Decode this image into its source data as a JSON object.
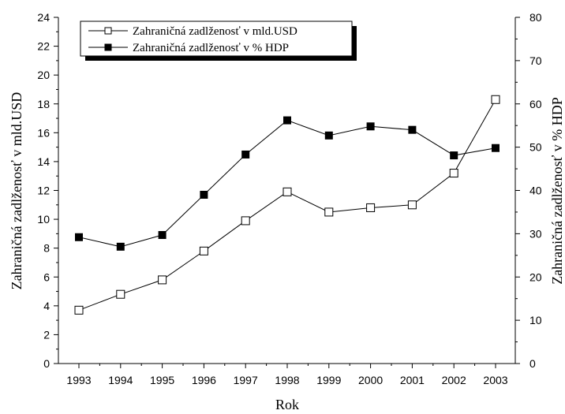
{
  "chart_data": {
    "type": "line",
    "title": "",
    "xlabel": "Rok",
    "ylabel": "Zahraničná zadlženosť v mld.USD",
    "y2label": "Zahraničná zadlženosť v % HDP",
    "categories": [
      "1993",
      "1994",
      "1995",
      "1996",
      "1997",
      "1998",
      "1999",
      "2000",
      "2001",
      "2002",
      "2003"
    ],
    "ylim": [
      0,
      24
    ],
    "y2lim": [
      0,
      80
    ],
    "yticks": [
      "0",
      "2",
      "4",
      "6",
      "8",
      "10",
      "12",
      "14",
      "16",
      "18",
      "20",
      "22",
      "24"
    ],
    "y2ticks": [
      "0",
      "10",
      "20",
      "30",
      "40",
      "50",
      "60",
      "70",
      "80"
    ],
    "grid": false,
    "legend_position": "top-left",
    "series": [
      {
        "name": "Zahraničná zadlženosť v mld.USD",
        "axis": "left",
        "marker": "open-square",
        "values": [
          3.7,
          4.8,
          5.8,
          7.8,
          9.9,
          11.9,
          10.5,
          10.8,
          11.0,
          13.2,
          18.3
        ]
      },
      {
        "name": "Zahraničná zadlženosť v % HDP",
        "axis": "right",
        "marker": "filled-square",
        "values": [
          29.2,
          27.0,
          29.7,
          39.0,
          48.3,
          56.2,
          52.7,
          54.8,
          54.0,
          48.1,
          49.8
        ]
      }
    ],
    "colors": {
      "line": "#000000",
      "background": "#ffffff"
    }
  }
}
